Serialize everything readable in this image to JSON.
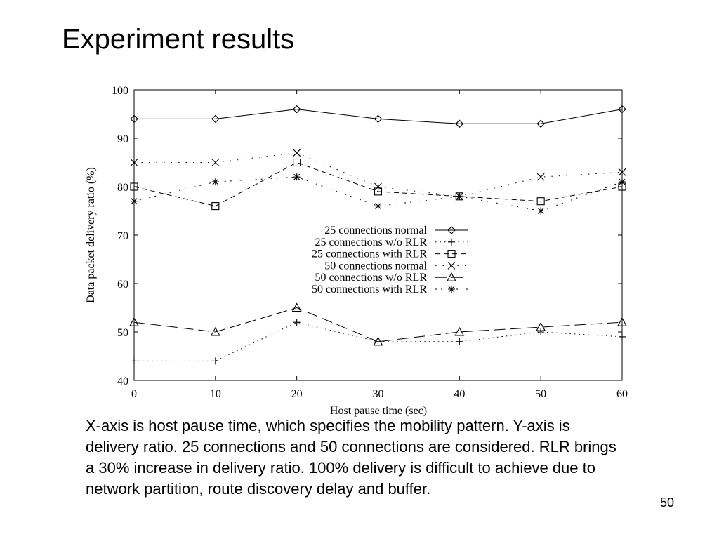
{
  "slide": {
    "title": "Experiment results",
    "caption": "X-axis is host pause time, which specifies the mobility pattern. Y-axis is delivery ratio. 25 connections and 50 connections are considered. RLR brings a 30% increase in delivery ratio. 100% delivery is difficult to achieve due to network partition, route discovery delay and buffer.",
    "page_number": "50"
  },
  "chart_data": {
    "type": "line",
    "title": "",
    "xlabel": "Host pause time (sec)",
    "ylabel": "Data packet delivery ratio (%)",
    "xlim": [
      0,
      60
    ],
    "ylim": [
      40,
      100
    ],
    "x": [
      0,
      10,
      20,
      30,
      40,
      50,
      60
    ],
    "x_ticks": [
      "0",
      "10",
      "20",
      "30",
      "40",
      "50",
      "60"
    ],
    "y_ticks": [
      "40",
      "50",
      "60",
      "70",
      "80",
      "90",
      "100"
    ],
    "grid": false,
    "legend_position": "center-right",
    "series": [
      {
        "name": "25 connections normal",
        "marker": "diamond",
        "dash": "solid",
        "values": [
          94,
          94,
          96,
          94,
          93,
          93,
          96
        ]
      },
      {
        "name": "25 connections w/o RLR",
        "marker": "plus",
        "dash": "dotted",
        "values": [
          44,
          44,
          52,
          48,
          48,
          50,
          49
        ]
      },
      {
        "name": "25 connections with RLR",
        "marker": "square",
        "dash": "dashed",
        "values": [
          80,
          76,
          85,
          79,
          78,
          77,
          80
        ]
      },
      {
        "name": "50 connections normal",
        "marker": "cross",
        "dash": "dotted-wide",
        "values": [
          85,
          85,
          87,
          80,
          78,
          82,
          83
        ]
      },
      {
        "name": "50 connections w/o RLR",
        "marker": "triangle",
        "dash": "long-dashed",
        "values": [
          52,
          50,
          55,
          48,
          50,
          51,
          52
        ]
      },
      {
        "name": "50 connections with RLR",
        "marker": "star",
        "dash": "dash-dot",
        "values": [
          77,
          81,
          82,
          76,
          78,
          75,
          81
        ]
      }
    ]
  }
}
